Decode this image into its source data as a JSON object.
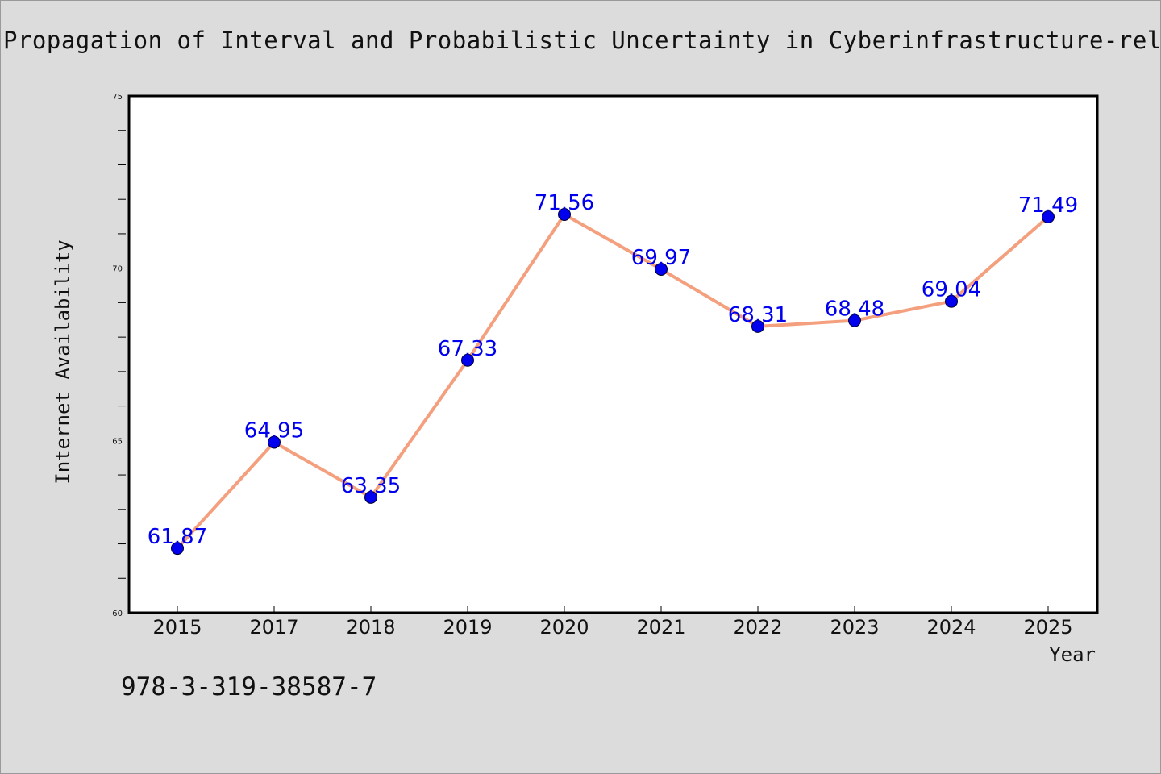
{
  "colors": {
    "background": "#dcdcdc",
    "line": "#f4a07e",
    "marker": "#0000ee",
    "data_label": "#0000ee",
    "axis": "#000000"
  },
  "footnote": "978-3-319-38587-7",
  "chart_data": {
    "type": "line",
    "title": "Propagation of Interval and Probabilistic Uncertainty in Cyberinfrastructure-rel",
    "xlabel": "Year",
    "ylabel": "Internet Availability",
    "categories": [
      "2015",
      "2017",
      "2018",
      "2019",
      "2020",
      "2021",
      "2022",
      "2023",
      "2024",
      "2025"
    ],
    "values": [
      61.87,
      64.95,
      63.35,
      67.33,
      71.56,
      69.97,
      68.31,
      68.48,
      69.04,
      71.49
    ],
    "data_labels": [
      "61.87",
      "64.95",
      "63.35",
      "67.33",
      "71.56",
      "69.97",
      "68.31",
      "68.48",
      "69.04",
      "71.49"
    ],
    "ylim": [
      60,
      75
    ],
    "y_ticks": [
      "60",
      "65",
      "70",
      "75"
    ],
    "grid": false,
    "legend": "none"
  }
}
